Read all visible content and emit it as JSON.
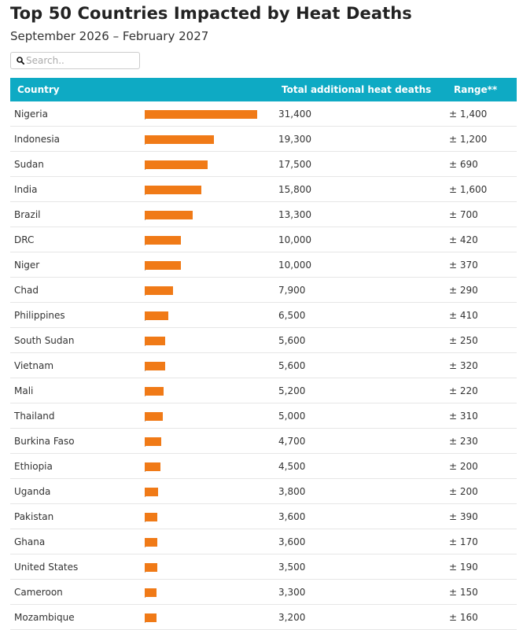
{
  "header": {
    "title": "Top 50 Countries Impacted by Heat Deaths",
    "subtitle": "September 2026 – February 2027"
  },
  "search": {
    "placeholder": "Search..",
    "icon": "search-icon"
  },
  "colors": {
    "header_bg": "#0eaac4",
    "header_text": "#ffffff",
    "bar": "#f07a17",
    "row_border": "#e6e6e6"
  },
  "chart_data": {
    "type": "table",
    "columns": [
      "Country",
      "",
      "Total additional heat deaths",
      "Range**"
    ],
    "bar_max": 31400,
    "rows": [
      {
        "country": "Nigeria",
        "deaths": 31400,
        "deaths_label": "31,400",
        "range": "± 1,400"
      },
      {
        "country": "Indonesia",
        "deaths": 19300,
        "deaths_label": "19,300",
        "range": "± 1,200"
      },
      {
        "country": "Sudan",
        "deaths": 17500,
        "deaths_label": "17,500",
        "range": "± 690"
      },
      {
        "country": "India",
        "deaths": 15800,
        "deaths_label": "15,800",
        "range": "± 1,600"
      },
      {
        "country": "Brazil",
        "deaths": 13300,
        "deaths_label": "13,300",
        "range": "± 700"
      },
      {
        "country": "DRC",
        "deaths": 10000,
        "deaths_label": "10,000",
        "range": "± 420"
      },
      {
        "country": "Niger",
        "deaths": 10000,
        "deaths_label": "10,000",
        "range": "± 370"
      },
      {
        "country": "Chad",
        "deaths": 7900,
        "deaths_label": "7,900",
        "range": "± 290"
      },
      {
        "country": "Philippines",
        "deaths": 6500,
        "deaths_label": "6,500",
        "range": "± 410"
      },
      {
        "country": "South Sudan",
        "deaths": 5600,
        "deaths_label": "5,600",
        "range": "± 250"
      },
      {
        "country": "Vietnam",
        "deaths": 5600,
        "deaths_label": "5,600",
        "range": "± 320"
      },
      {
        "country": "Mali",
        "deaths": 5200,
        "deaths_label": "5,200",
        "range": "± 220"
      },
      {
        "country": "Thailand",
        "deaths": 5000,
        "deaths_label": "5,000",
        "range": "± 310"
      },
      {
        "country": "Burkina Faso",
        "deaths": 4700,
        "deaths_label": "4,700",
        "range": "± 230"
      },
      {
        "country": "Ethiopia",
        "deaths": 4500,
        "deaths_label": "4,500",
        "range": "± 200"
      },
      {
        "country": "Uganda",
        "deaths": 3800,
        "deaths_label": "3,800",
        "range": "± 200"
      },
      {
        "country": "Pakistan",
        "deaths": 3600,
        "deaths_label": "3,600",
        "range": "± 390"
      },
      {
        "country": "Ghana",
        "deaths": 3600,
        "deaths_label": "3,600",
        "range": "± 170"
      },
      {
        "country": "United States",
        "deaths": 3500,
        "deaths_label": "3,500",
        "range": "± 190"
      },
      {
        "country": "Cameroon",
        "deaths": 3300,
        "deaths_label": "3,300",
        "range": "± 150"
      },
      {
        "country": "Mozambique",
        "deaths": 3200,
        "deaths_label": "3,200",
        "range": "± 160"
      }
    ]
  }
}
